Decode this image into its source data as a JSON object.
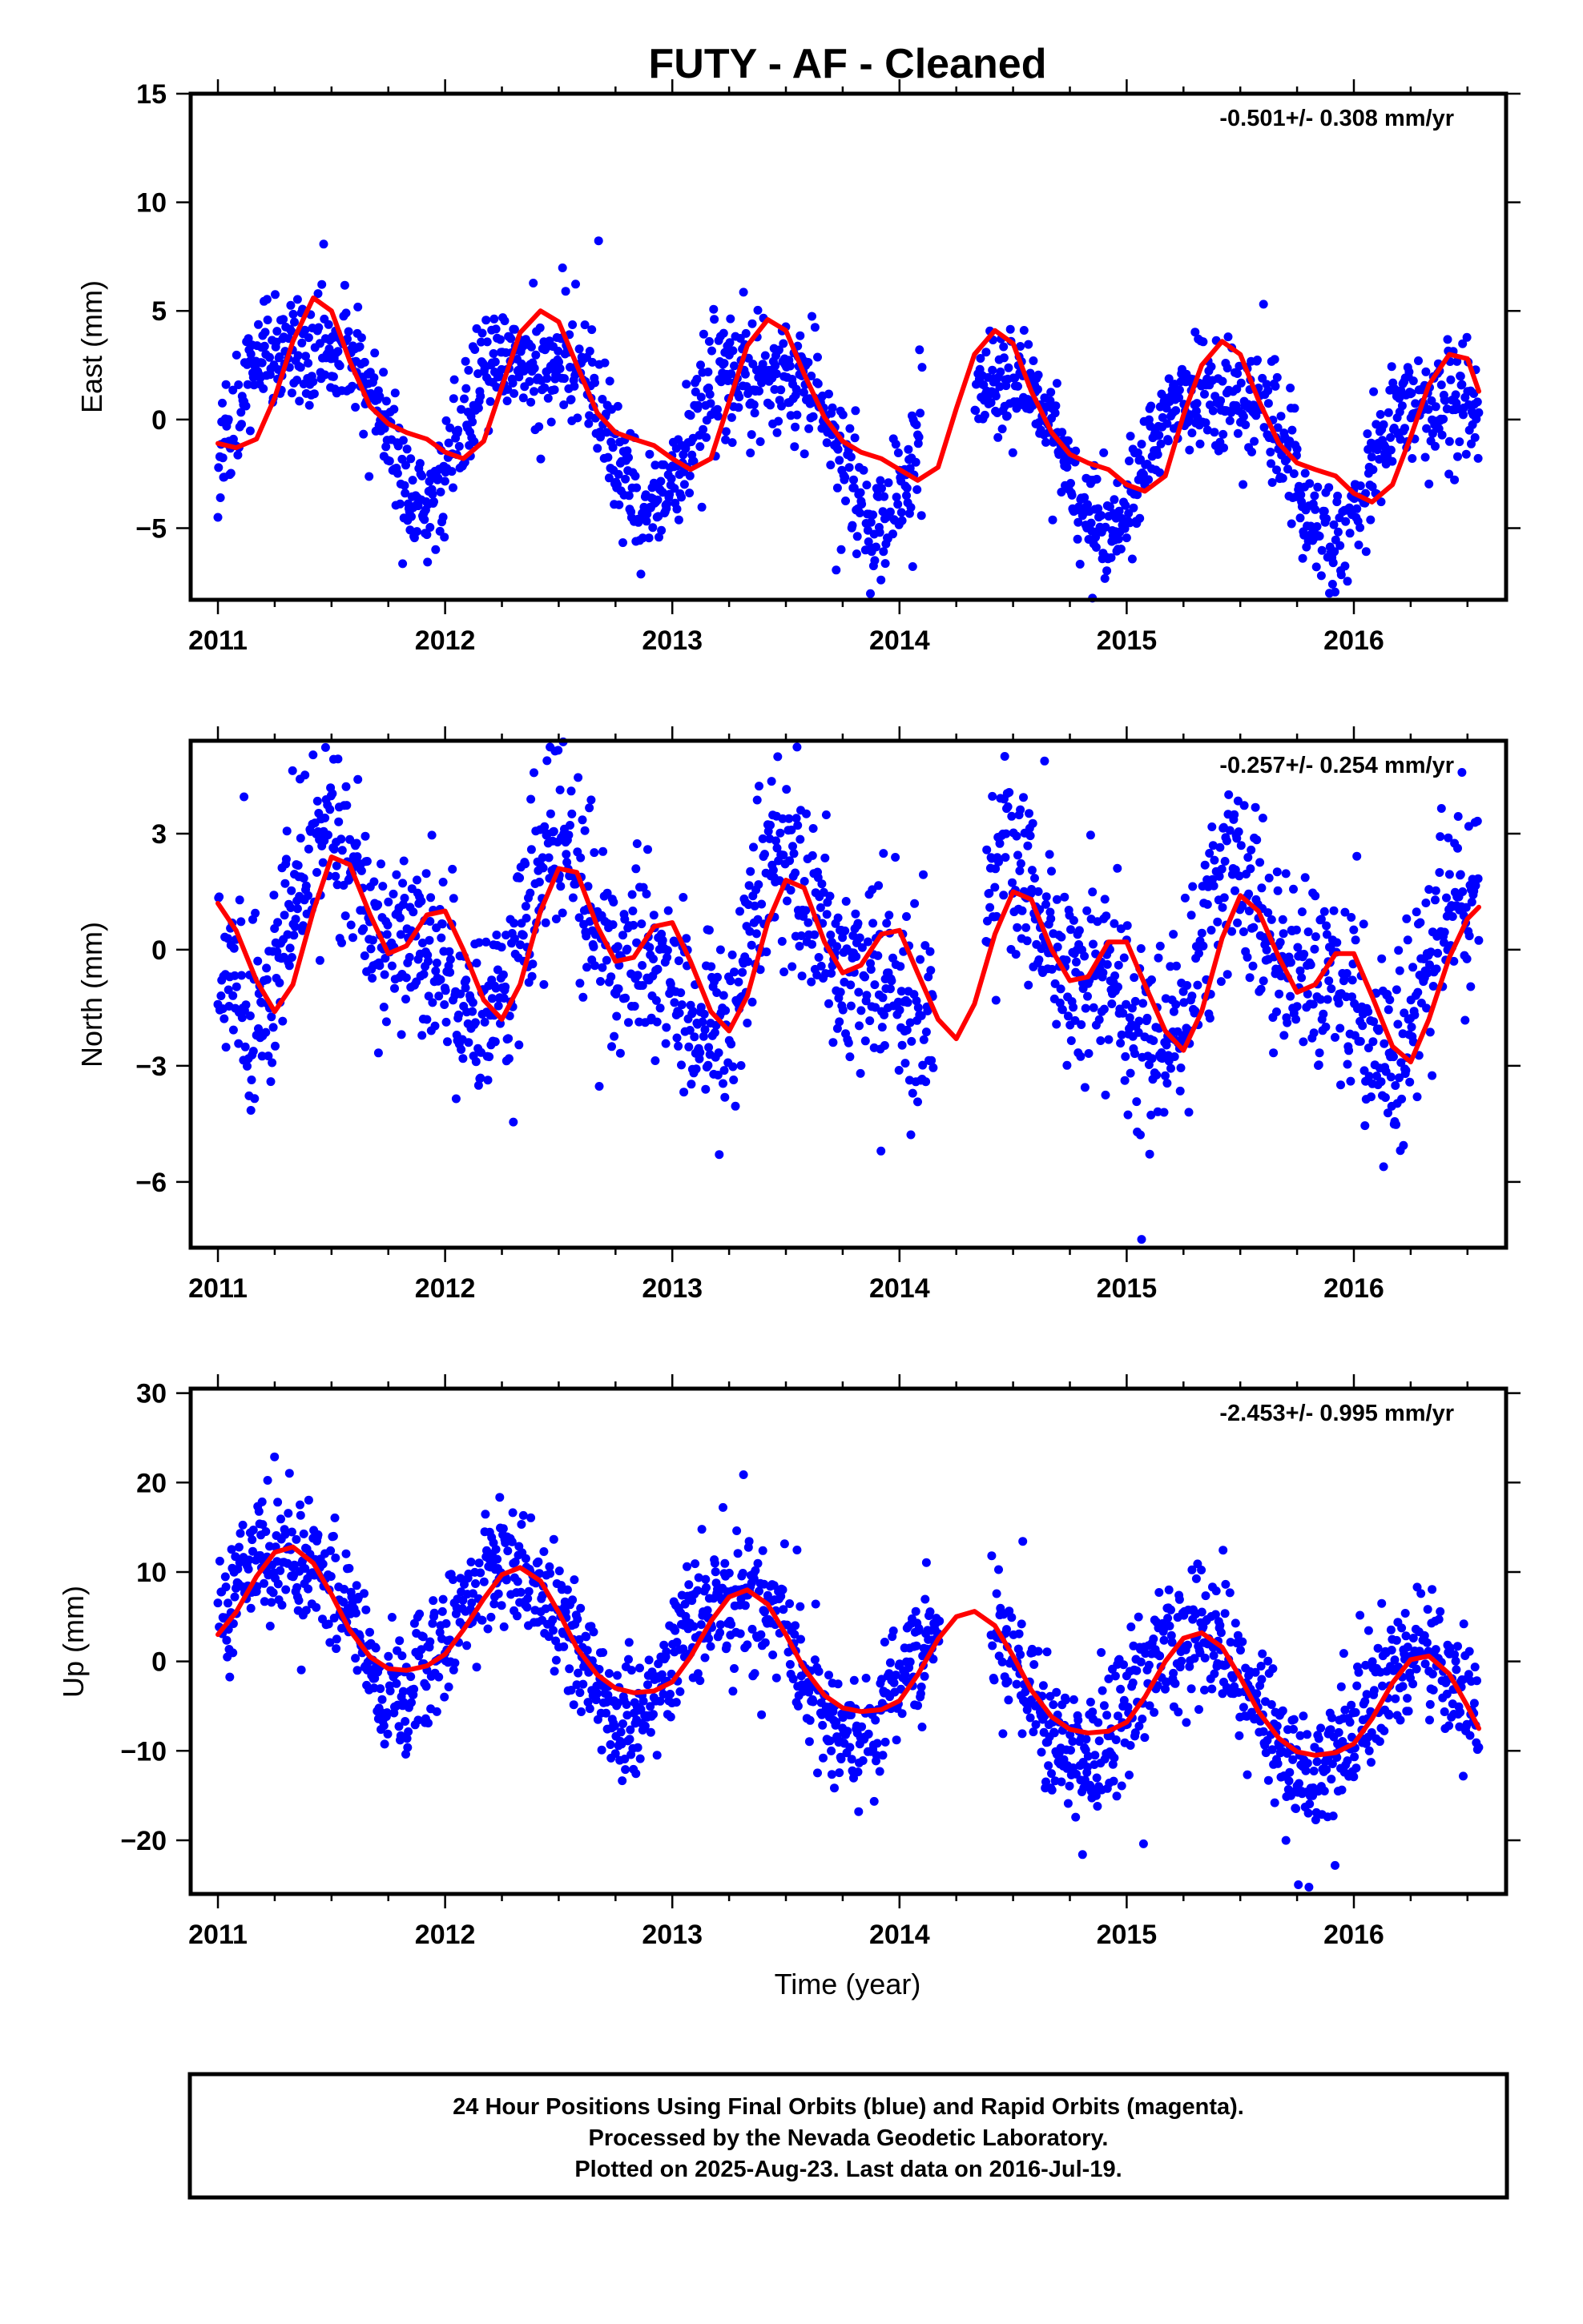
{
  "title": "FUTY  - AF - Cleaned",
  "x_axis_label": "Time (year)",
  "footer": {
    "line1": "24 Hour Positions Using Final Orbits (blue) and Rapid Orbits (magenta).",
    "line2": "Processed by the Nevada Geodetic Laboratory.",
    "line3": "Plotted on 2025-Aug-23. Last data on 2016-Jul-19."
  },
  "colors": {
    "final_orbits": "#0000ff",
    "fit_curve": "#ff0000",
    "frame": "#000000"
  },
  "chart_data": [
    {
      "type": "scatter",
      "ylabel": "East (mm)",
      "rate_label": "-0.501+/- 0.308 mm/yr",
      "xlim": [
        2010.88,
        2016.67
      ],
      "ylim": [
        -8.3,
        15
      ],
      "xticks": [
        2011,
        2012,
        2013,
        2014,
        2015,
        2016
      ],
      "yticks": [
        -5,
        0,
        5,
        10,
        15
      ],
      "series": [
        {
          "name": "Final Orbits",
          "kind": "points",
          "model": {
            "x0": 2011.0,
            "x1": 2016.55,
            "mean": 1.0,
            "trend": -0.501,
            "amp1": 3.4,
            "phase1": 2011.4,
            "amp2": 1.1,
            "phase2": 2011.65,
            "noise": 1.3,
            "gap": [
              2014.1,
              2014.33
            ]
          }
        },
        {
          "name": "Fit",
          "kind": "curve",
          "points": [
            [
              2011.0,
              -1.1
            ],
            [
              2011.08,
              -1.3
            ],
            [
              2011.17,
              -0.9
            ],
            [
              2011.25,
              1.0
            ],
            [
              2011.33,
              3.6
            ],
            [
              2011.42,
              5.6
            ],
            [
              2011.5,
              5.0
            ],
            [
              2011.58,
              2.7
            ],
            [
              2011.67,
              0.6
            ],
            [
              2011.75,
              -0.2
            ],
            [
              2011.83,
              -0.6
            ],
            [
              2011.92,
              -0.9
            ],
            [
              2012.0,
              -1.5
            ],
            [
              2012.08,
              -1.8
            ],
            [
              2012.17,
              -1.0
            ],
            [
              2012.25,
              1.5
            ],
            [
              2012.33,
              4.0
            ],
            [
              2012.42,
              5.0
            ],
            [
              2012.5,
              4.5
            ],
            [
              2012.58,
              2.5
            ],
            [
              2012.67,
              0.3
            ],
            [
              2012.75,
              -0.6
            ],
            [
              2012.83,
              -0.9
            ],
            [
              2012.92,
              -1.2
            ],
            [
              2013.0,
              -1.8
            ],
            [
              2013.08,
              -2.3
            ],
            [
              2013.17,
              -1.8
            ],
            [
              2013.25,
              0.8
            ],
            [
              2013.33,
              3.4
            ],
            [
              2013.42,
              4.6
            ],
            [
              2013.5,
              4.1
            ],
            [
              2013.58,
              2.1
            ],
            [
              2013.67,
              0.1
            ],
            [
              2013.75,
              -1.0
            ],
            [
              2013.83,
              -1.5
            ],
            [
              2013.92,
              -1.8
            ],
            [
              2014.0,
              -2.3
            ],
            [
              2014.08,
              -2.8
            ],
            [
              2014.17,
              -2.2
            ],
            [
              2014.25,
              0.5
            ],
            [
              2014.33,
              3.0
            ],
            [
              2014.42,
              4.1
            ],
            [
              2014.5,
              3.5
            ],
            [
              2014.58,
              1.3
            ],
            [
              2014.67,
              -0.6
            ],
            [
              2014.75,
              -1.6
            ],
            [
              2014.83,
              -2.0
            ],
            [
              2014.92,
              -2.3
            ],
            [
              2015.0,
              -3.0
            ],
            [
              2015.08,
              -3.3
            ],
            [
              2015.17,
              -2.6
            ],
            [
              2015.25,
              0.2
            ],
            [
              2015.33,
              2.5
            ],
            [
              2015.42,
              3.6
            ],
            [
              2015.5,
              3.0
            ],
            [
              2015.58,
              0.9
            ],
            [
              2015.67,
              -1.1
            ],
            [
              2015.75,
              -2.0
            ],
            [
              2015.83,
              -2.3
            ],
            [
              2015.92,
              -2.6
            ],
            [
              2016.0,
              -3.4
            ],
            [
              2016.08,
              -3.8
            ],
            [
              2016.17,
              -3.0
            ],
            [
              2016.25,
              -0.8
            ],
            [
              2016.33,
              1.6
            ],
            [
              2016.42,
              3.0
            ],
            [
              2016.5,
              2.8
            ],
            [
              2016.55,
              1.3
            ]
          ]
        }
      ]
    },
    {
      "type": "scatter",
      "ylabel": "North (mm)",
      "rate_label": "-0.257+/- 0.254 mm/yr",
      "xlim": [
        2010.88,
        2016.67
      ],
      "ylim": [
        -7.7,
        5.4
      ],
      "xticks": [
        2011,
        2012,
        2013,
        2014,
        2015,
        2016
      ],
      "yticks": [
        -6,
        -3,
        0,
        3
      ],
      "series": [
        {
          "name": "Final Orbits",
          "kind": "points",
          "model": {
            "x0": 2011.0,
            "x1": 2016.55,
            "mean": 0.6,
            "trend": -0.257,
            "amp1": 1.8,
            "phase1": 2011.55,
            "amp2": 0.9,
            "phase2": 2011.95,
            "noise": 1.2,
            "gap": [
              2014.15,
              2014.38
            ]
          }
        },
        {
          "name": "Fit",
          "kind": "curve",
          "points": [
            [
              2011.0,
              1.2
            ],
            [
              2011.08,
              0.5
            ],
            [
              2011.17,
              -0.8
            ],
            [
              2011.25,
              -1.6
            ],
            [
              2011.33,
              -0.9
            ],
            [
              2011.42,
              1.0
            ],
            [
              2011.5,
              2.4
            ],
            [
              2011.58,
              2.2
            ],
            [
              2011.67,
              0.9
            ],
            [
              2011.75,
              -0.1
            ],
            [
              2011.83,
              0.1
            ],
            [
              2011.92,
              0.9
            ],
            [
              2012.0,
              1.0
            ],
            [
              2012.08,
              0.0
            ],
            [
              2012.17,
              -1.3
            ],
            [
              2012.25,
              -1.8
            ],
            [
              2012.33,
              -0.9
            ],
            [
              2012.42,
              1.0
            ],
            [
              2012.5,
              2.1
            ],
            [
              2012.58,
              2.0
            ],
            [
              2012.67,
              0.6
            ],
            [
              2012.75,
              -0.3
            ],
            [
              2012.83,
              -0.2
            ],
            [
              2012.92,
              0.6
            ],
            [
              2013.0,
              0.7
            ],
            [
              2013.08,
              -0.3
            ],
            [
              2013.17,
              -1.6
            ],
            [
              2013.25,
              -2.1
            ],
            [
              2013.33,
              -1.2
            ],
            [
              2013.42,
              0.7
            ],
            [
              2013.5,
              1.8
            ],
            [
              2013.58,
              1.6
            ],
            [
              2013.67,
              0.2
            ],
            [
              2013.75,
              -0.6
            ],
            [
              2013.83,
              -0.4
            ],
            [
              2013.92,
              0.4
            ],
            [
              2014.0,
              0.5
            ],
            [
              2014.08,
              -0.6
            ],
            [
              2014.17,
              -1.8
            ],
            [
              2014.25,
              -2.3
            ],
            [
              2014.33,
              -1.4
            ],
            [
              2014.42,
              0.4
            ],
            [
              2014.5,
              1.5
            ],
            [
              2014.58,
              1.3
            ],
            [
              2014.67,
              0.0
            ],
            [
              2014.75,
              -0.8
            ],
            [
              2014.83,
              -0.7
            ],
            [
              2014.92,
              0.2
            ],
            [
              2015.0,
              0.2
            ],
            [
              2015.08,
              -0.9
            ],
            [
              2015.17,
              -2.1
            ],
            [
              2015.25,
              -2.6
            ],
            [
              2015.33,
              -1.6
            ],
            [
              2015.42,
              0.3
            ],
            [
              2015.5,
              1.4
            ],
            [
              2015.58,
              1.0
            ],
            [
              2015.67,
              -0.2
            ],
            [
              2015.75,
              -1.1
            ],
            [
              2015.83,
              -0.9
            ],
            [
              2015.92,
              -0.1
            ],
            [
              2016.0,
              -0.1
            ],
            [
              2016.08,
              -1.2
            ],
            [
              2016.17,
              -2.5
            ],
            [
              2016.25,
              -2.9
            ],
            [
              2016.33,
              -1.8
            ],
            [
              2016.42,
              -0.2
            ],
            [
              2016.5,
              0.8
            ],
            [
              2016.55,
              1.1
            ]
          ]
        }
      ]
    },
    {
      "type": "scatter",
      "ylabel": "Up (mm)",
      "rate_label": "-2.453+/- 0.995 mm/yr",
      "xlim": [
        2010.88,
        2016.67
      ],
      "ylim": [
        -26,
        30.5
      ],
      "xticks": [
        2011,
        2012,
        2013,
        2014,
        2015,
        2016
      ],
      "yticks": [
        -20,
        -10,
        0,
        10,
        20,
        30
      ],
      "series": [
        {
          "name": "Final Orbits",
          "kind": "points",
          "model": {
            "x0": 2011.0,
            "x1": 2016.55,
            "mean": 6.5,
            "trend": -2.453,
            "amp1": 7.5,
            "phase1": 2011.3,
            "amp2": 0.8,
            "phase2": 2011.55,
            "noise": 3.6,
            "gap": [
              2014.18,
              2014.4
            ]
          }
        },
        {
          "name": "Fit",
          "kind": "curve",
          "points": [
            [
              2011.0,
              3.0
            ],
            [
              2011.08,
              5.5
            ],
            [
              2011.17,
              9.5
            ],
            [
              2011.25,
              12.2
            ],
            [
              2011.33,
              12.8
            ],
            [
              2011.42,
              11.0
            ],
            [
              2011.5,
              7.5
            ],
            [
              2011.58,
              3.5
            ],
            [
              2011.67,
              0.5
            ],
            [
              2011.75,
              -0.8
            ],
            [
              2011.83,
              -1.0
            ],
            [
              2011.92,
              -0.5
            ],
            [
              2012.0,
              0.8
            ],
            [
              2012.08,
              3.5
            ],
            [
              2012.17,
              7.0
            ],
            [
              2012.25,
              9.7
            ],
            [
              2012.33,
              10.5
            ],
            [
              2012.42,
              9.0
            ],
            [
              2012.5,
              5.5
            ],
            [
              2012.58,
              1.5
            ],
            [
              2012.67,
              -1.5
            ],
            [
              2012.75,
              -3.0
            ],
            [
              2012.83,
              -3.5
            ],
            [
              2012.92,
              -3.3
            ],
            [
              2013.0,
              -2.3
            ],
            [
              2013.08,
              0.5
            ],
            [
              2013.17,
              4.5
            ],
            [
              2013.25,
              7.2
            ],
            [
              2013.33,
              8.0
            ],
            [
              2013.42,
              6.4
            ],
            [
              2013.5,
              3.0
            ],
            [
              2013.58,
              -0.8
            ],
            [
              2013.67,
              -3.8
            ],
            [
              2013.75,
              -5.2
            ],
            [
              2013.83,
              -5.6
            ],
            [
              2013.92,
              -5.4
            ],
            [
              2014.0,
              -4.4
            ],
            [
              2014.08,
              -1.5
            ],
            [
              2014.17,
              2.5
            ],
            [
              2014.25,
              5.0
            ],
            [
              2014.33,
              5.6
            ],
            [
              2014.42,
              4.0
            ],
            [
              2014.5,
              0.6
            ],
            [
              2014.58,
              -3.2
            ],
            [
              2014.67,
              -6.2
            ],
            [
              2014.75,
              -7.6
            ],
            [
              2014.83,
              -8.0
            ],
            [
              2014.92,
              -7.8
            ],
            [
              2015.0,
              -6.8
            ],
            [
              2015.08,
              -4.0
            ],
            [
              2015.17,
              0.0
            ],
            [
              2015.25,
              2.6
            ],
            [
              2015.33,
              3.2
            ],
            [
              2015.42,
              1.6
            ],
            [
              2015.5,
              -1.8
            ],
            [
              2015.58,
              -5.6
            ],
            [
              2015.67,
              -8.6
            ],
            [
              2015.75,
              -10.1
            ],
            [
              2015.83,
              -10.5
            ],
            [
              2015.92,
              -10.2
            ],
            [
              2016.0,
              -9.2
            ],
            [
              2016.08,
              -6.4
            ],
            [
              2016.17,
              -2.4
            ],
            [
              2016.25,
              0.2
            ],
            [
              2016.33,
              0.6
            ],
            [
              2016.42,
              -1.4
            ],
            [
              2016.5,
              -5.0
            ],
            [
              2016.55,
              -7.5
            ]
          ]
        }
      ]
    }
  ]
}
